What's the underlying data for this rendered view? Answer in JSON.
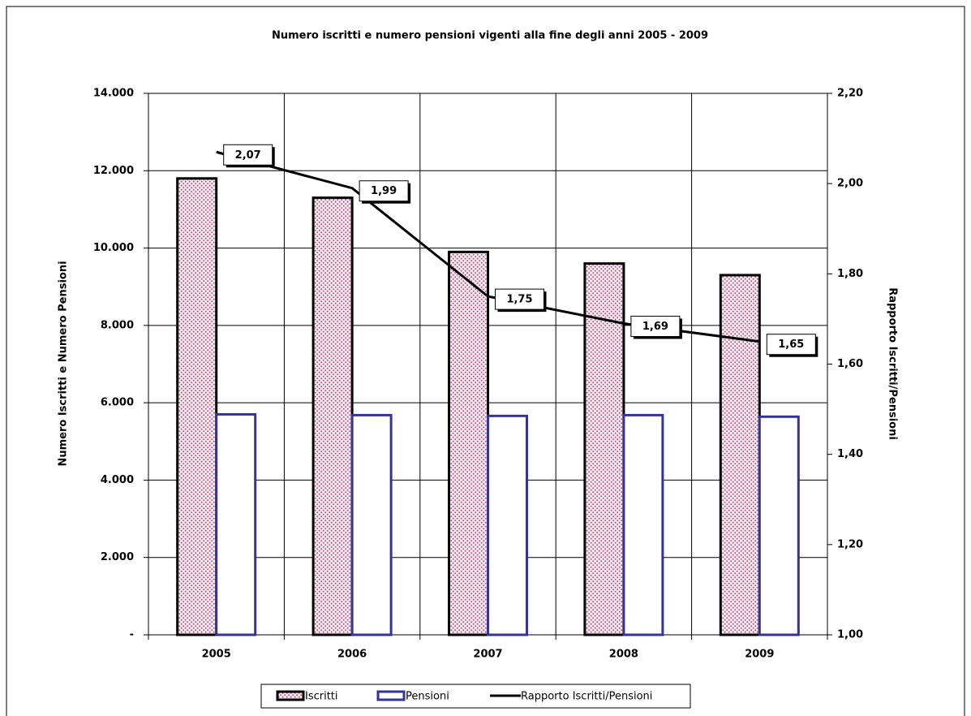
{
  "chart_data": {
    "type": "bar",
    "title": "Numero iscritti e numero pensioni vigenti alla fine degli anni 2005 - 2009",
    "y_label": "Numero Iscritti e Numero Pensioni",
    "y2_label": "Rapporto Iscritti/Pensioni",
    "categories": [
      "2005",
      "2006",
      "2007",
      "2008",
      "2009"
    ],
    "series": [
      {
        "name": "Iscritti",
        "type": "bar",
        "color": "#9b4f7a",
        "values": [
          11800,
          11300,
          9900,
          9600,
          9300
        ]
      },
      {
        "name": "Pensioni",
        "type": "bar",
        "color": "#333399",
        "values": [
          5700,
          5680,
          5660,
          5680,
          5640
        ]
      },
      {
        "name": "Rapporto Iscritti/Pensioni",
        "type": "line",
        "axis": "y2",
        "color": "#000000",
        "values": [
          2.07,
          1.99,
          1.75,
          1.69,
          1.65
        ],
        "value_labels": [
          "2,07",
          "1,99",
          "1,75",
          "1,69",
          "1,65"
        ]
      }
    ],
    "ylim": [
      0,
      14000
    ],
    "yticks": [
      {
        "value": 0,
        "label": "-"
      },
      {
        "value": 2000,
        "label": "2.000"
      },
      {
        "value": 4000,
        "label": "4.000"
      },
      {
        "value": 6000,
        "label": "6.000"
      },
      {
        "value": 8000,
        "label": "8.000"
      },
      {
        "value": 10000,
        "label": "10.000"
      },
      {
        "value": 12000,
        "label": "12.000"
      },
      {
        "value": 14000,
        "label": "14.000"
      }
    ],
    "y2lim": [
      1.0,
      2.2
    ],
    "y2ticks": [
      {
        "value": 1.0,
        "label": "1,00"
      },
      {
        "value": 1.2,
        "label": "1,20"
      },
      {
        "value": 1.4,
        "label": "1,40"
      },
      {
        "value": 1.6,
        "label": "1,60"
      },
      {
        "value": 1.8,
        "label": "1,80"
      },
      {
        "value": 2.0,
        "label": "2,00"
      },
      {
        "value": 2.2,
        "label": "2,20"
      }
    ],
    "grid": true,
    "legend": "bottom"
  }
}
